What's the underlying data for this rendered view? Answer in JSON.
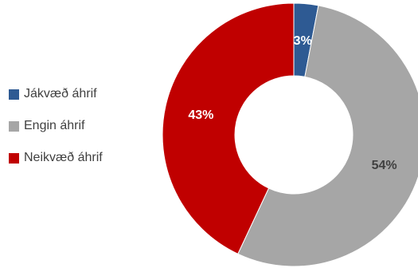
{
  "chart_data": {
    "type": "pie",
    "donut": true,
    "legend_position": "left",
    "slices": [
      {
        "label": "Jákvæð áhrif",
        "value": 3,
        "display": "3%",
        "color": "#2E5A93",
        "label_color": "#ffffff"
      },
      {
        "label": "Engin áhrif",
        "value": 54,
        "display": "54%",
        "color": "#A6A6A6",
        "label_color": "#404040"
      },
      {
        "label": "Neikvæð áhrif",
        "value": 43,
        "display": "43%",
        "color": "#C00000",
        "label_color": "#ffffff"
      }
    ]
  }
}
